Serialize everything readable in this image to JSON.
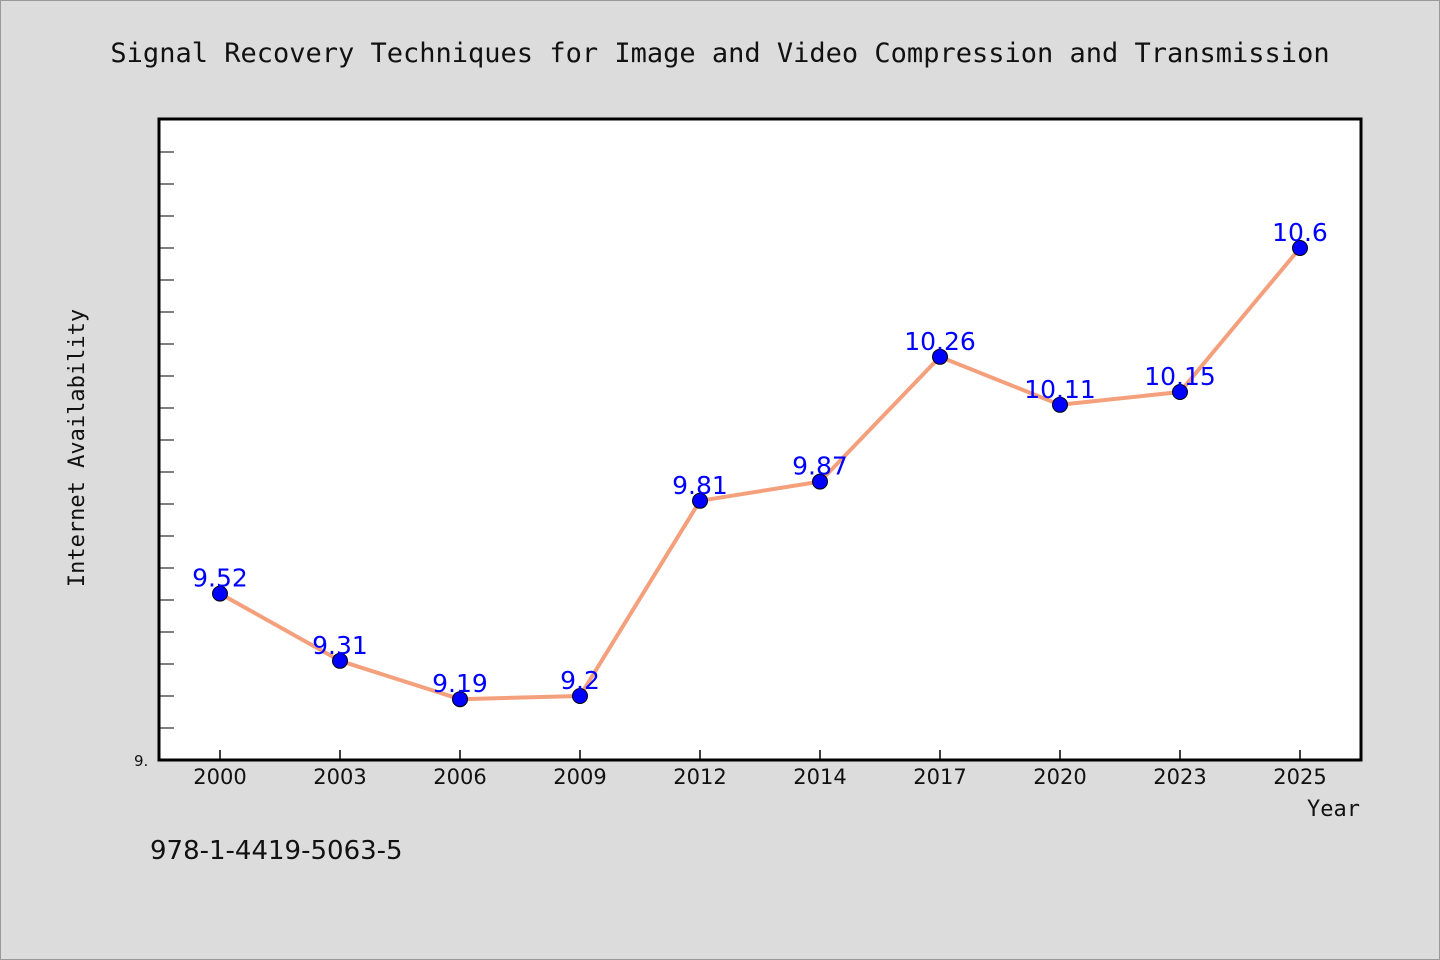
{
  "chart_data": {
    "type": "line",
    "title": "Signal Recovery Techniques for Image and Video Compression and Transmission",
    "xlabel": "Year",
    "ylabel": "Internet Availability",
    "categories": [
      "2000",
      "2003",
      "2006",
      "2009",
      "2012",
      "2014",
      "2017",
      "2020",
      "2023",
      "2025"
    ],
    "series": [
      {
        "values": [
          9.52,
          9.31,
          9.19,
          9.2,
          9.81,
          9.87,
          10.26,
          10.11,
          10.15,
          10.6
        ]
      }
    ],
    "data_labels": [
      "9.52",
      "9.31",
      "9.19",
      "9.2",
      "9.81",
      "9.87",
      "10.26",
      "10.11",
      "10.15",
      "10.6"
    ],
    "y_tick_label": "9.",
    "ylim": [
      9.0,
      11.0
    ],
    "y_minor_tick_step": 0.1,
    "grid": false,
    "legend": "none",
    "colors": {
      "line": "#f4a07c",
      "marker": "#0000ff",
      "label": "#0000ff",
      "background": "#dcdcdc",
      "plot_background": "#ffffff"
    }
  },
  "footer": {
    "isbn": "978-1-4419-5063-5"
  }
}
